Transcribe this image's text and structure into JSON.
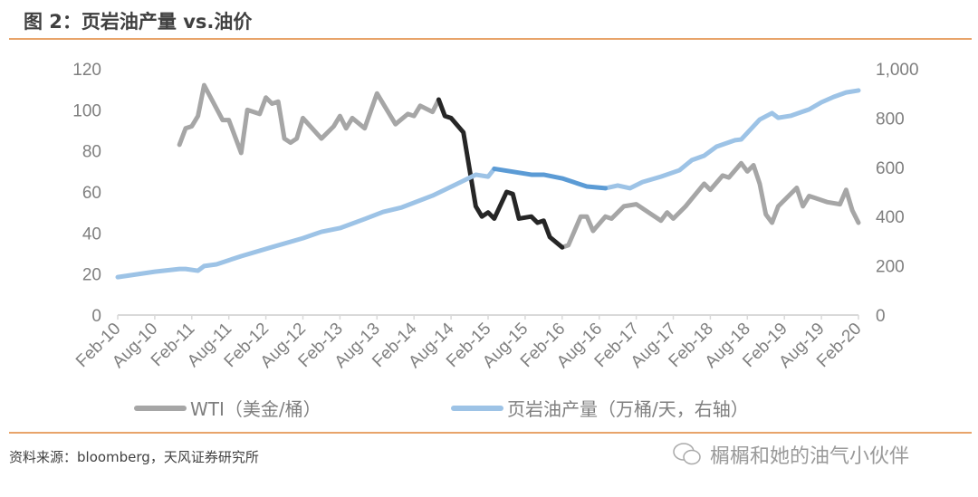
{
  "header": {
    "title": "图 2：页岩油产量 vs.油价"
  },
  "footer": {
    "source": "资料来源：bloomberg，天风证券研究所",
    "watermark": "榍榍和她的油气小伙伴",
    "watermark_icon": "wechat-icon"
  },
  "chart_data": {
    "type": "line",
    "title": "",
    "x_ticks": [
      "Feb-10",
      "Aug-10",
      "Feb-11",
      "Aug-11",
      "Feb-12",
      "Aug-12",
      "Feb-13",
      "Aug-13",
      "Feb-14",
      "Aug-14",
      "Feb-15",
      "Aug-15",
      "Feb-16",
      "Aug-16",
      "Feb-17",
      "Aug-17",
      "Feb-18",
      "Aug-18",
      "Feb-19",
      "Aug-19",
      "Feb-20"
    ],
    "xlim": [
      "2010-02",
      "2020-02"
    ],
    "y_left": {
      "ticks": [
        "0",
        "20",
        "40",
        "60",
        "80",
        "100",
        "120"
      ],
      "ylim": [
        0,
        120
      ]
    },
    "y_right": {
      "ticks": [
        "0",
        "200",
        "400",
        "600",
        "800",
        "1,000"
      ],
      "ylim": [
        0,
        1000
      ]
    },
    "grid": false,
    "legend_position": "bottom",
    "series": [
      {
        "name": "WTI（美金/桶）",
        "axis": "left",
        "color": "#A6A6A6",
        "highlight_color": "#262626",
        "highlight_range": [
          "2014-06",
          "2016-02"
        ],
        "points": [
          [
            "2010-12",
            83
          ],
          [
            "2011-01",
            91
          ],
          [
            "2011-02",
            92
          ],
          [
            "2011-03",
            97
          ],
          [
            "2011-04",
            112
          ],
          [
            "2011-07",
            95
          ],
          [
            "2011-08",
            95
          ],
          [
            "2011-10",
            79
          ],
          [
            "2011-11",
            100
          ],
          [
            "2012-01",
            98
          ],
          [
            "2012-02",
            106
          ],
          [
            "2012-03",
            103
          ],
          [
            "2012-04",
            104
          ],
          [
            "2012-05",
            86
          ],
          [
            "2012-06",
            84
          ],
          [
            "2012-07",
            86
          ],
          [
            "2012-08",
            96
          ],
          [
            "2012-11",
            86
          ],
          [
            "2013-01",
            92
          ],
          [
            "2013-02",
            97
          ],
          [
            "2013-03",
            91
          ],
          [
            "2013-04",
            96
          ],
          [
            "2013-06",
            91
          ],
          [
            "2013-08",
            108
          ],
          [
            "2013-11",
            93
          ],
          [
            "2014-01",
            98
          ],
          [
            "2014-02",
            97
          ],
          [
            "2014-03",
            102
          ],
          [
            "2014-05",
            99
          ],
          [
            "2014-06",
            105
          ],
          [
            "2014-07",
            97
          ],
          [
            "2014-08",
            96
          ],
          [
            "2014-10",
            89
          ],
          [
            "2014-11",
            71
          ],
          [
            "2014-12",
            53
          ],
          [
            "2015-01",
            48
          ],
          [
            "2015-02",
            50
          ],
          [
            "2015-03",
            47
          ],
          [
            "2015-05",
            60
          ],
          [
            "2015-06",
            59
          ],
          [
            "2015-07",
            47
          ],
          [
            "2015-09",
            48
          ],
          [
            "2015-10",
            45
          ],
          [
            "2015-11",
            46
          ],
          [
            "2015-12",
            38
          ],
          [
            "2016-02",
            33
          ],
          [
            "2016-03",
            34
          ],
          [
            "2016-05",
            48
          ],
          [
            "2016-06",
            48
          ],
          [
            "2016-07",
            41
          ],
          [
            "2016-09",
            48
          ],
          [
            "2016-10",
            47
          ],
          [
            "2016-12",
            53
          ],
          [
            "2017-02",
            54
          ],
          [
            "2017-04",
            50
          ],
          [
            "2017-06",
            46
          ],
          [
            "2017-07",
            50
          ],
          [
            "2017-08",
            47
          ],
          [
            "2017-10",
            53
          ],
          [
            "2018-01",
            64
          ],
          [
            "2018-02",
            61
          ],
          [
            "2018-04",
            68
          ],
          [
            "2018-05",
            67
          ],
          [
            "2018-07",
            74
          ],
          [
            "2018-08",
            70
          ],
          [
            "2018-09",
            73
          ],
          [
            "2018-10",
            64
          ],
          [
            "2018-11",
            49
          ],
          [
            "2018-12",
            45
          ],
          [
            "2019-01",
            53
          ],
          [
            "2019-04",
            62
          ],
          [
            "2019-05",
            53
          ],
          [
            "2019-06",
            58
          ],
          [
            "2019-07",
            57
          ],
          [
            "2019-09",
            55
          ],
          [
            "2019-11",
            54
          ],
          [
            "2019-12",
            61
          ],
          [
            "2020-01",
            51
          ],
          [
            "2020-02",
            45
          ]
        ]
      },
      {
        "name": "页岩油产量（万桶/天，右轴）",
        "axis": "right",
        "color": "#9DC3E6",
        "highlight_color": "#5B9BD5",
        "highlight_range": [
          "2015-03",
          "2016-09"
        ],
        "points": [
          [
            "2010-02",
            154
          ],
          [
            "2010-05",
            165
          ],
          [
            "2010-08",
            176
          ],
          [
            "2010-12",
            187
          ],
          [
            "2011-01",
            187
          ],
          [
            "2011-03",
            180
          ],
          [
            "2011-04",
            199
          ],
          [
            "2011-06",
            206
          ],
          [
            "2011-10",
            239
          ],
          [
            "2012-03",
            276
          ],
          [
            "2012-08",
            312
          ],
          [
            "2012-11",
            338
          ],
          [
            "2013-02",
            353
          ],
          [
            "2013-06",
            390
          ],
          [
            "2013-09",
            419
          ],
          [
            "2013-12",
            437
          ],
          [
            "2014-05",
            485
          ],
          [
            "2014-09",
            533
          ],
          [
            "2014-12",
            570
          ],
          [
            "2015-02",
            562
          ],
          [
            "2015-03",
            594
          ],
          [
            "2015-09",
            570
          ],
          [
            "2015-11",
            570
          ],
          [
            "2016-02",
            555
          ],
          [
            "2016-06",
            522
          ],
          [
            "2016-09",
            515
          ],
          [
            "2016-11",
            526
          ],
          [
            "2017-01",
            515
          ],
          [
            "2017-03",
            540
          ],
          [
            "2017-06",
            562
          ],
          [
            "2017-09",
            588
          ],
          [
            "2017-11",
            629
          ],
          [
            "2018-01",
            647
          ],
          [
            "2018-03",
            684
          ],
          [
            "2018-06",
            710
          ],
          [
            "2018-07",
            713
          ],
          [
            "2018-10",
            794
          ],
          [
            "2018-12",
            820
          ],
          [
            "2019-01",
            801
          ],
          [
            "2019-03",
            809
          ],
          [
            "2019-06",
            835
          ],
          [
            "2019-08",
            864
          ],
          [
            "2019-10",
            886
          ],
          [
            "2019-12",
            904
          ],
          [
            "2020-02",
            912
          ]
        ]
      }
    ]
  }
}
